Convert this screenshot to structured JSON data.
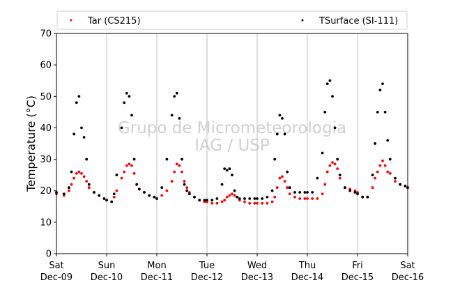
{
  "chart_data": {
    "type": "scatter",
    "title": "",
    "xlabel": "",
    "ylabel": "Temperature (°C)",
    "ylim": [
      0,
      70
    ],
    "yticks": [
      0,
      10,
      20,
      30,
      40,
      50,
      60,
      70
    ],
    "xlim": [
      0,
      7
    ],
    "x_unit": "days from Sat Dec-09 00:00",
    "xticks": [
      {
        "day": "Sat",
        "date": "Dec-09"
      },
      {
        "day": "Sun",
        "date": "Dec-10"
      },
      {
        "day": "Mon",
        "date": "Dec-11"
      },
      {
        "day": "Tue",
        "date": "Dec-12"
      },
      {
        "day": "Wed",
        "date": "Dec-13"
      },
      {
        "day": "Thu",
        "date": "Dec-14"
      },
      {
        "day": "Fri",
        "date": "Dec-15"
      },
      {
        "day": "Sat",
        "date": "Dec-16"
      }
    ],
    "grid": "vertical",
    "legend_position": "top",
    "watermark": [
      "Grupo de Micrometeorologia",
      "IAG / USP"
    ],
    "series": [
      {
        "name": "Tar (CS215)",
        "color": "#ff0000",
        "marker": "dot",
        "x": [
          0.0,
          0.15,
          0.25,
          0.3,
          0.35,
          0.4,
          0.45,
          0.5,
          0.55,
          0.6,
          0.65,
          0.75,
          0.85,
          0.95,
          1.0,
          1.1,
          1.15,
          1.2,
          1.3,
          1.35,
          1.4,
          1.45,
          1.5,
          1.55,
          1.6,
          1.65,
          1.75,
          1.85,
          1.95,
          2.0,
          2.1,
          2.2,
          2.3,
          2.35,
          2.4,
          2.45,
          2.5,
          2.55,
          2.6,
          2.65,
          2.75,
          2.85,
          2.95,
          3.0,
          3.1,
          3.2,
          3.3,
          3.35,
          3.4,
          3.45,
          3.5,
          3.55,
          3.6,
          3.65,
          3.75,
          3.85,
          3.95,
          4.0,
          4.1,
          4.2,
          4.3,
          4.35,
          4.4,
          4.45,
          4.5,
          4.55,
          4.6,
          4.65,
          4.75,
          4.85,
          4.95,
          5.0,
          5.1,
          5.2,
          5.3,
          5.35,
          5.4,
          5.45,
          5.5,
          5.55,
          5.6,
          5.65,
          5.75,
          5.85,
          5.95,
          6.0,
          6.1,
          6.2,
          6.3,
          6.35,
          6.4,
          6.45,
          6.5,
          6.55,
          6.6,
          6.65,
          6.75,
          6.85,
          6.95,
          7.0
        ],
        "y": [
          19,
          18.5,
          20,
          22,
          24,
          25.5,
          26,
          25.5,
          24.5,
          23,
          21,
          19.5,
          18.5,
          17.5,
          17,
          16.5,
          18,
          20,
          24,
          26,
          28,
          28.5,
          28,
          25.5,
          22,
          20.5,
          19.5,
          18.5,
          18,
          17.5,
          18.5,
          20,
          23,
          26,
          28.5,
          28,
          26,
          23,
          21,
          19.5,
          18,
          17,
          16.5,
          16.5,
          16,
          16,
          16.5,
          17,
          18,
          18.5,
          19,
          18.5,
          18,
          17,
          16.5,
          16,
          16,
          16,
          16,
          16,
          16.5,
          18,
          21,
          24,
          24.5,
          23,
          21,
          19,
          18,
          17.5,
          17.5,
          17.5,
          17.5,
          17.5,
          19,
          22,
          26,
          28,
          29,
          28.5,
          27,
          24,
          21,
          20.5,
          20,
          19.5,
          18,
          18,
          21,
          24,
          26,
          28,
          29.5,
          28,
          26,
          25.5,
          23,
          22,
          21.5,
          21
        ]
      },
      {
        "name": "TSurface (SI-111)",
        "color": "#000000",
        "marker": "dot",
        "x": [
          0.0,
          0.15,
          0.25,
          0.3,
          0.35,
          0.4,
          0.45,
          0.5,
          0.55,
          0.6,
          0.65,
          0.75,
          0.85,
          0.95,
          1.0,
          1.1,
          1.15,
          1.2,
          1.3,
          1.35,
          1.4,
          1.45,
          1.5,
          1.55,
          1.6,
          1.65,
          1.75,
          1.85,
          1.95,
          2.0,
          2.1,
          2.2,
          2.3,
          2.35,
          2.4,
          2.45,
          2.5,
          2.55,
          2.6,
          2.65,
          2.75,
          2.85,
          2.95,
          3.0,
          3.1,
          3.2,
          3.3,
          3.35,
          3.4,
          3.45,
          3.5,
          3.55,
          3.6,
          3.65,
          3.75,
          3.85,
          3.95,
          4.0,
          4.1,
          4.2,
          4.3,
          4.35,
          4.4,
          4.45,
          4.5,
          4.55,
          4.6,
          4.65,
          4.75,
          4.85,
          4.95,
          5.0,
          5.1,
          5.2,
          5.3,
          5.35,
          5.4,
          5.45,
          5.5,
          5.55,
          5.6,
          5.65,
          5.75,
          5.85,
          5.95,
          6.0,
          6.1,
          6.2,
          6.3,
          6.35,
          6.4,
          6.45,
          6.5,
          6.55,
          6.6,
          6.65,
          6.75,
          6.85,
          6.95,
          7.0
        ],
        "y": [
          19.5,
          19,
          21,
          26,
          38,
          48,
          50,
          40,
          37,
          30,
          22,
          19.5,
          18.5,
          17.5,
          17,
          16.5,
          19,
          25,
          40,
          48,
          51,
          50,
          44,
          30,
          22,
          20.5,
          19.5,
          18.5,
          18,
          17.5,
          21,
          30,
          44,
          50,
          51,
          43,
          30,
          22,
          20,
          19,
          18,
          17,
          17,
          17,
          17,
          17.5,
          22,
          27,
          26.5,
          27,
          25,
          20,
          18,
          17.5,
          17.5,
          17.5,
          17.5,
          17.5,
          17.5,
          18,
          20,
          30,
          38,
          44,
          43,
          38,
          26,
          21,
          19.5,
          19.5,
          19.5,
          19.5,
          19.5,
          24,
          32,
          45,
          54,
          55,
          50,
          40,
          30,
          25,
          21,
          20,
          19.5,
          19,
          18,
          18,
          25,
          35,
          45,
          52,
          54,
          45,
          36,
          30,
          24,
          22,
          21.5,
          21
        ]
      }
    ]
  }
}
